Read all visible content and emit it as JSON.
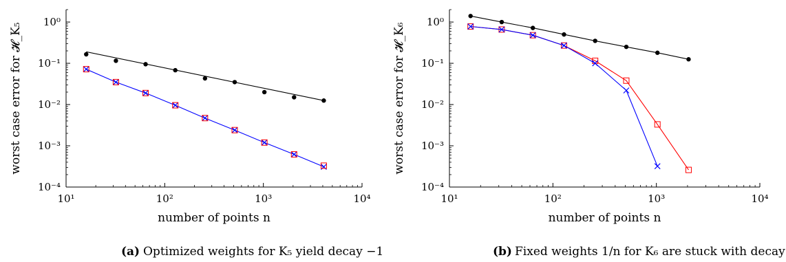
{
  "figure": {
    "captions": [
      {
        "letter": "(a)",
        "text": "Optimized weights for K₅ yield decay −1"
      },
      {
        "letter": "(b)",
        "text": "Fixed weights 1/n for K₆ are stuck with decay −1/2"
      }
    ]
  },
  "chart_data": [
    {
      "type": "line",
      "panel": "a",
      "xscale": "log",
      "yscale": "log",
      "xlim": [
        10,
        10000
      ],
      "ylim": [
        0.0001,
        2
      ],
      "xlabel": "number of points n",
      "ylabel": "worst case error for 𝓗_K₅",
      "x_ticks": [
        10,
        100,
        1000,
        10000
      ],
      "x_tick_labels": [
        "10¹",
        "10²",
        "10³",
        "10⁴"
      ],
      "y_ticks": [
        0.0001,
        0.001,
        0.01,
        0.1,
        1
      ],
      "y_tick_labels": [
        "10⁻⁴",
        "10⁻³",
        "10⁻²",
        "10⁻¹",
        "10⁰"
      ],
      "series": [
        {
          "color": "#000000",
          "kind": "fit-line",
          "x": [
            16,
            4096
          ],
          "y": [
            0.19,
            0.0125
          ]
        },
        {
          "color": "#000000",
          "kind": "dots",
          "marker": "circle",
          "x": [
            16,
            32,
            64,
            128,
            256,
            512,
            1024,
            2048,
            4096
          ],
          "y": [
            0.165,
            0.115,
            0.095,
            0.068,
            0.043,
            0.035,
            0.02,
            0.015,
            0.0125
          ]
        },
        {
          "color": "#0000ff",
          "kind": "line",
          "marker": "x",
          "x": [
            16,
            32,
            64,
            128,
            256,
            512,
            1024,
            2048,
            4096
          ],
          "y": [
            0.072,
            0.035,
            0.019,
            0.0096,
            0.0047,
            0.0024,
            0.0012,
            0.00062,
            0.00031
          ]
        },
        {
          "color": "#ff0000",
          "kind": "markers",
          "marker": "square",
          "x": [
            16,
            32,
            64,
            128,
            256,
            512,
            1024,
            2048,
            4096
          ],
          "y": [
            0.072,
            0.035,
            0.019,
            0.0096,
            0.0047,
            0.0024,
            0.0012,
            0.00062,
            0.00033
          ]
        }
      ]
    },
    {
      "type": "line",
      "panel": "b",
      "xscale": "log",
      "yscale": "log",
      "xlim": [
        10,
        10000
      ],
      "ylim": [
        0.0001,
        2
      ],
      "xlabel": "number of points n",
      "ylabel": "worst case error for 𝓗_K₆",
      "x_ticks": [
        10,
        100,
        1000,
        10000
      ],
      "x_tick_labels": [
        "10¹",
        "10²",
        "10³",
        "10⁴"
      ],
      "y_ticks": [
        0.0001,
        0.001,
        0.01,
        0.1,
        1
      ],
      "y_tick_labels": [
        "10⁻⁴",
        "10⁻³",
        "10⁻²",
        "10⁻¹",
        "10⁰"
      ],
      "series": [
        {
          "color": "#000000",
          "kind": "line",
          "marker": "circle",
          "x": [
            16,
            32,
            64,
            128,
            256,
            512,
            1024,
            2048
          ],
          "y": [
            1.4,
            1.0,
            0.72,
            0.5,
            0.35,
            0.25,
            0.18,
            0.125
          ]
        },
        {
          "color": "#ff0000",
          "kind": "line",
          "marker": "square",
          "x": [
            16,
            32,
            64,
            128,
            256,
            512,
            1024,
            2048
          ],
          "y": [
            0.78,
            0.66,
            0.48,
            0.27,
            0.115,
            0.038,
            0.0033,
            0.00026
          ]
        },
        {
          "color": "#0000ff",
          "kind": "line",
          "marker": "x",
          "x": [
            16,
            32,
            64,
            128,
            256,
            512,
            1024
          ],
          "y": [
            0.78,
            0.66,
            0.48,
            0.27,
            0.1,
            0.022,
            0.00032
          ]
        }
      ]
    }
  ]
}
